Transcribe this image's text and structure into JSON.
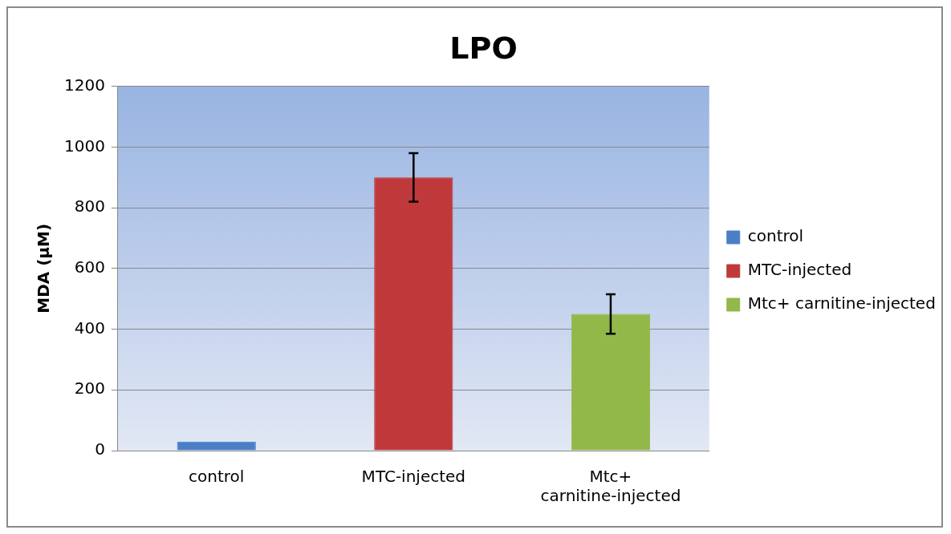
{
  "chart_data": {
    "type": "bar",
    "title": "LPO",
    "ylabel": "MDA (µM)",
    "categories": [
      "control",
      "MTC-injected",
      "Mtc+ carnitine-injected"
    ],
    "series": [
      {
        "name": "control",
        "color": "#4a7fc8",
        "values": [
          30,
          null,
          null
        ],
        "errors": [
          null,
          null,
          null
        ]
      },
      {
        "name": "MTC-injected",
        "color": "#c0393a",
        "values": [
          null,
          900,
          null
        ],
        "errors": [
          null,
          80,
          null
        ]
      },
      {
        "name": "Mtc+ carnitine-injected",
        "color": "#93b84a",
        "values": [
          null,
          null,
          450
        ],
        "errors": [
          null,
          null,
          65
        ]
      }
    ],
    "ylim": [
      0,
      1200
    ],
    "yticks": [
      0,
      200,
      400,
      600,
      800,
      1000,
      1200
    ],
    "grid": "y",
    "legend": "right"
  }
}
